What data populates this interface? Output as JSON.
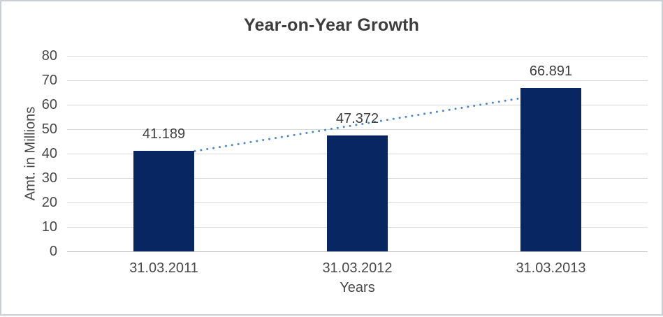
{
  "window": {
    "background": "#ffffff",
    "border_color": "#cbd0d5"
  },
  "chart_data": {
    "type": "bar",
    "title": "Year-on-Year Growth",
    "xlabel": "Years",
    "ylabel": "Amt. in Millions",
    "categories": [
      "31.03.2011",
      "31.03.2012",
      "31.03.2013"
    ],
    "values": [
      41.189,
      47.372,
      66.891
    ],
    "data_labels": [
      "41.189",
      "47.372",
      "66.891"
    ],
    "ylim": [
      0,
      80
    ],
    "yticks": [
      0,
      10,
      20,
      30,
      40,
      50,
      60,
      70,
      80
    ],
    "grid": true,
    "legend": false,
    "trendline": {
      "type": "linear",
      "style": "dotted",
      "color": "#4e86c8"
    },
    "colors": {
      "bar": "#082662",
      "gridline": "#d9d9d9",
      "axis_line": "#c3c3c3",
      "title_text": "#3d3d3d",
      "label_text": "#484848"
    }
  }
}
